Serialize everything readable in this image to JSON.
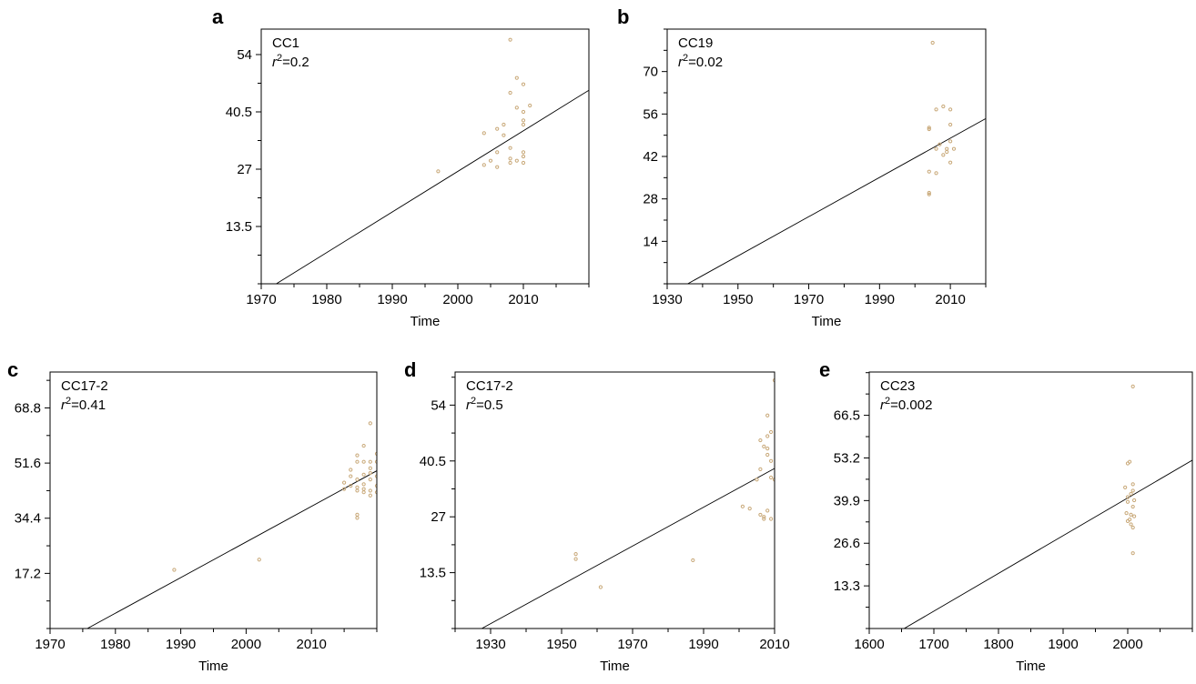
{
  "chart_data": [
    {
      "type": "scatter",
      "panel": "a",
      "annotation_label": "CC1",
      "r2_value": "0.2",
      "xlabel": "Time",
      "ylabel": "",
      "xlim": [
        1970,
        2020
      ],
      "ylim": [
        0,
        60
      ],
      "x_ticks": [
        1970,
        1980,
        1990,
        2000,
        2010
      ],
      "y_ticks": [
        13.5,
        27,
        40.5,
        54
      ],
      "point_color": "#c8a878",
      "fit_line": {
        "x": [
          1972.3,
          2020
        ],
        "y": [
          0,
          45.6
        ]
      },
      "points": [
        {
          "x": 1997,
          "y": 26.5
        },
        {
          "x": 2004,
          "y": 28
        },
        {
          "x": 2004,
          "y": 35.5
        },
        {
          "x": 2005,
          "y": 29
        },
        {
          "x": 2006,
          "y": 27.5
        },
        {
          "x": 2006,
          "y": 31
        },
        {
          "x": 2006,
          "y": 36.5
        },
        {
          "x": 2007,
          "y": 37.5
        },
        {
          "x": 2007,
          "y": 35
        },
        {
          "x": 2008,
          "y": 28.5
        },
        {
          "x": 2008,
          "y": 29.5
        },
        {
          "x": 2008,
          "y": 32
        },
        {
          "x": 2008,
          "y": 45
        },
        {
          "x": 2008,
          "y": 57.5
        },
        {
          "x": 2009,
          "y": 29
        },
        {
          "x": 2009,
          "y": 41.5
        },
        {
          "x": 2009,
          "y": 48.5
        },
        {
          "x": 2010,
          "y": 28.5
        },
        {
          "x": 2010,
          "y": 30
        },
        {
          "x": 2010,
          "y": 31
        },
        {
          "x": 2010,
          "y": 37.5
        },
        {
          "x": 2010,
          "y": 38.5
        },
        {
          "x": 2010,
          "y": 40.5
        },
        {
          "x": 2010,
          "y": 47
        },
        {
          "x": 2011,
          "y": 42
        }
      ]
    },
    {
      "type": "scatter",
      "panel": "b",
      "annotation_label": "CC19",
      "r2_value": "0.02",
      "xlabel": "Time",
      "ylabel": "",
      "xlim": [
        1930,
        2020
      ],
      "ylim": [
        0,
        84
      ],
      "x_ticks": [
        1930,
        1950,
        1970,
        1990,
        2010
      ],
      "y_ticks": [
        14,
        28,
        42,
        56,
        70
      ],
      "point_color": "#c8a878",
      "fit_line": {
        "x": [
          1935.8,
          2020
        ],
        "y": [
          0,
          54.5
        ]
      },
      "points": [
        {
          "x": 2004,
          "y": 29.5
        },
        {
          "x": 2004,
          "y": 30
        },
        {
          "x": 2004,
          "y": 37
        },
        {
          "x": 2004,
          "y": 51
        },
        {
          "x": 2004,
          "y": 51.5
        },
        {
          "x": 2005,
          "y": 79.5
        },
        {
          "x": 2006,
          "y": 36.5
        },
        {
          "x": 2006,
          "y": 44.5
        },
        {
          "x": 2006,
          "y": 57.5
        },
        {
          "x": 2007,
          "y": 46
        },
        {
          "x": 2008,
          "y": 42.5
        },
        {
          "x": 2008,
          "y": 58.5
        },
        {
          "x": 2009,
          "y": 43.5
        },
        {
          "x": 2009,
          "y": 44.5
        },
        {
          "x": 2010,
          "y": 40
        },
        {
          "x": 2010,
          "y": 47
        },
        {
          "x": 2010,
          "y": 52.5
        },
        {
          "x": 2010,
          "y": 57.5
        },
        {
          "x": 2011,
          "y": 44.5
        }
      ]
    },
    {
      "type": "scatter",
      "panel": "c",
      "annotation_label": "CC17-2",
      "r2_value": "0.41",
      "xlabel": "Time",
      "ylabel": "",
      "xlim": [
        1970,
        2020
      ],
      "ylim": [
        0,
        80
      ],
      "x_ticks": [
        1970,
        1980,
        1990,
        2000,
        2010
      ],
      "y_ticks": [
        17.2,
        34.4,
        51.6,
        68.8
      ],
      "point_color": "#c8a878",
      "fit_line": {
        "x": [
          1975.7,
          2020
        ],
        "y": [
          0,
          49.2
        ]
      },
      "points": [
        {
          "x": 1989,
          "y": 18.3
        },
        {
          "x": 2002,
          "y": 21.5
        },
        {
          "x": 2015,
          "y": 43.5
        },
        {
          "x": 2015,
          "y": 45.5
        },
        {
          "x": 2016,
          "y": 44.5
        },
        {
          "x": 2016,
          "y": 47.5
        },
        {
          "x": 2016,
          "y": 49.5
        },
        {
          "x": 2017,
          "y": 34.5
        },
        {
          "x": 2017,
          "y": 35.5
        },
        {
          "x": 2017,
          "y": 43
        },
        {
          "x": 2017,
          "y": 44
        },
        {
          "x": 2017,
          "y": 46.5
        },
        {
          "x": 2017,
          "y": 52
        },
        {
          "x": 2017,
          "y": 54
        },
        {
          "x": 2018,
          "y": 42.5
        },
        {
          "x": 2018,
          "y": 43.5
        },
        {
          "x": 2018,
          "y": 45
        },
        {
          "x": 2018,
          "y": 48
        },
        {
          "x": 2018,
          "y": 52
        },
        {
          "x": 2018,
          "y": 57
        },
        {
          "x": 2019,
          "y": 41.5
        },
        {
          "x": 2019,
          "y": 43
        },
        {
          "x": 2019,
          "y": 46.5
        },
        {
          "x": 2019,
          "y": 48.5
        },
        {
          "x": 2019,
          "y": 50
        },
        {
          "x": 2019,
          "y": 52
        },
        {
          "x": 2019,
          "y": 64
        },
        {
          "x": 2020,
          "y": 42.5
        },
        {
          "x": 2020,
          "y": 44.5
        },
        {
          "x": 2020,
          "y": 47.5
        },
        {
          "x": 2020,
          "y": 52
        },
        {
          "x": 2020,
          "y": 54.5
        }
      ]
    },
    {
      "type": "scatter",
      "panel": "d",
      "annotation_label": "CC17-2",
      "r2_value": "0.5",
      "xlabel": "Time",
      "ylabel": "",
      "xlim": [
        1920,
        2010
      ],
      "ylim": [
        0,
        62
      ],
      "x_ticks": [
        1930,
        1950,
        1970,
        1990,
        2010
      ],
      "y_ticks": [
        13.5,
        27,
        40.5,
        54
      ],
      "point_color": "#c8a878",
      "fit_line": {
        "x": [
          1927.5,
          2010
        ],
        "y": [
          0,
          38.7
        ]
      },
      "points": [
        {
          "x": 1954,
          "y": 16.8
        },
        {
          "x": 1954,
          "y": 18
        },
        {
          "x": 1961,
          "y": 10
        },
        {
          "x": 1987,
          "y": 16.5
        },
        {
          "x": 2001,
          "y": 29.5
        },
        {
          "x": 2003,
          "y": 29
        },
        {
          "x": 2005,
          "y": 36
        },
        {
          "x": 2006,
          "y": 27.5
        },
        {
          "x": 2006,
          "y": 38.5
        },
        {
          "x": 2006,
          "y": 45.5
        },
        {
          "x": 2007,
          "y": 26.5
        },
        {
          "x": 2007,
          "y": 27
        },
        {
          "x": 2007,
          "y": 44
        },
        {
          "x": 2008,
          "y": 28.5
        },
        {
          "x": 2008,
          "y": 42
        },
        {
          "x": 2008,
          "y": 43.5
        },
        {
          "x": 2008,
          "y": 46.5
        },
        {
          "x": 2008,
          "y": 51.5
        },
        {
          "x": 2009,
          "y": 26.5
        },
        {
          "x": 2009,
          "y": 36.5
        },
        {
          "x": 2009,
          "y": 40.5
        },
        {
          "x": 2009,
          "y": 47.5
        },
        {
          "x": 2010,
          "y": 36
        },
        {
          "x": 2010,
          "y": 60
        }
      ]
    },
    {
      "type": "scatter",
      "panel": "e",
      "annotation_label": "CC23",
      "r2_value": "0.002",
      "xlabel": "Time",
      "ylabel": "",
      "xlim": [
        1600,
        2100
      ],
      "ylim": [
        0,
        80
      ],
      "x_ticks": [
        1600,
        1700,
        1800,
        1900,
        2000
      ],
      "y_ticks": [
        13.3,
        26.6,
        39.9,
        53.2,
        66.5
      ],
      "point_color": "#c8a878",
      "fit_line": {
        "x": [
          1654,
          2100
        ],
        "y": [
          0,
          52.5
        ]
      },
      "points": [
        {
          "x": 1996,
          "y": 44
        },
        {
          "x": 1998,
          "y": 36
        },
        {
          "x": 2000,
          "y": 33.5
        },
        {
          "x": 2000,
          "y": 39.5
        },
        {
          "x": 2000,
          "y": 41
        },
        {
          "x": 2000,
          "y": 51.5
        },
        {
          "x": 2003,
          "y": 34
        },
        {
          "x": 2003,
          "y": 52
        },
        {
          "x": 2005,
          "y": 32.5
        },
        {
          "x": 2005,
          "y": 35.5
        },
        {
          "x": 2005,
          "y": 42
        },
        {
          "x": 2008,
          "y": 23.5
        },
        {
          "x": 2008,
          "y": 31.5
        },
        {
          "x": 2008,
          "y": 38
        },
        {
          "x": 2008,
          "y": 43
        },
        {
          "x": 2008,
          "y": 45
        },
        {
          "x": 2008,
          "y": 75.5
        },
        {
          "x": 2010,
          "y": 35
        },
        {
          "x": 2010,
          "y": 40
        }
      ]
    }
  ]
}
